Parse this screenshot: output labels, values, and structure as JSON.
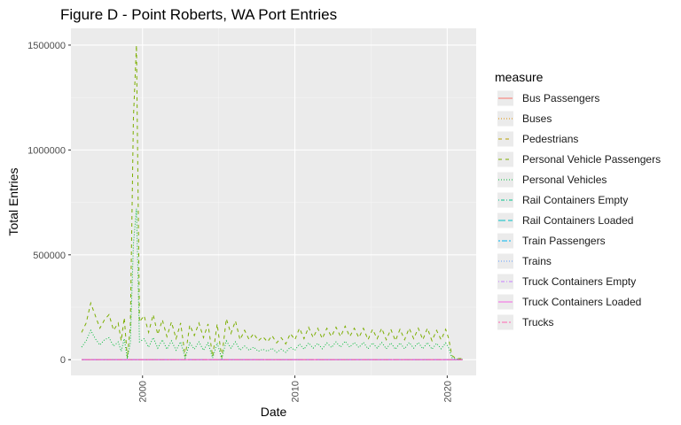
{
  "chart_data": {
    "type": "line",
    "title": "Figure D - Point Roberts, WA Port Entries",
    "xlabel": "Date",
    "ylabel": "Total Entries",
    "x_ticks": [
      2000,
      2010,
      2020
    ],
    "x_tick_labels": [
      "2000",
      "2010",
      "2020"
    ],
    "y_ticks": [
      0,
      500000,
      1000000,
      1500000
    ],
    "y_tick_labels": [
      "0",
      "500000",
      "1000000",
      "1500000"
    ],
    "xlim": [
      1995.3,
      2021.9
    ],
    "ylim": [
      -75000,
      1580000
    ],
    "grid": true,
    "legend": {
      "title": "measure",
      "position": "right"
    },
    "series": [
      {
        "name": "Bus Passengers",
        "color": "#F8766D",
        "dash": "solid",
        "x": [
          1996.0,
          2001.0,
          2006.0,
          2011.0,
          2016.0,
          2020.0,
          2021.0
        ],
        "y": [
          0,
          0,
          0,
          0,
          0,
          0,
          0
        ]
      },
      {
        "name": "Buses",
        "color": "#DE8C00",
        "dash": "dotted",
        "x": [
          1996.0,
          2001.0,
          2006.0,
          2011.0,
          2016.0,
          2020.0,
          2021.0
        ],
        "y": [
          0,
          0,
          0,
          0,
          0,
          0,
          0
        ]
      },
      {
        "name": "Pedestrians",
        "color": "#B79F00",
        "dash": "dashed",
        "x": [
          1996.0,
          2005.0,
          2015.0,
          2020.0,
          2021.0
        ],
        "y": [
          0,
          0,
          0,
          0,
          0
        ]
      },
      {
        "name": "Personal Vehicle Passengers",
        "color": "#7CAE00",
        "dash": "dashed",
        "x": [
          1996.0,
          1996.3,
          1996.6,
          1996.9,
          1997.2,
          1997.5,
          1997.8,
          1998.1,
          1998.4,
          1998.6,
          1998.8,
          1999.0,
          1999.2,
          1999.4,
          1999.6,
          1999.8,
          2000.1,
          2000.4,
          2000.7,
          2001.0,
          2001.3,
          2001.6,
          2001.9,
          2002.2,
          2002.5,
          2002.8,
          2003.1,
          2003.4,
          2003.7,
          2004.0,
          2004.3,
          2004.6,
          2004.9,
          2005.2,
          2005.5,
          2005.8,
          2006.1,
          2006.4,
          2006.7,
          2007.0,
          2007.3,
          2007.6,
          2007.9,
          2008.2,
          2008.5,
          2008.8,
          2009.1,
          2009.4,
          2009.7,
          2010.0,
          2010.3,
          2010.6,
          2010.9,
          2011.2,
          2011.5,
          2011.8,
          2012.1,
          2012.4,
          2012.7,
          2013.0,
          2013.3,
          2013.6,
          2013.9,
          2014.2,
          2014.5,
          2014.8,
          2015.1,
          2015.4,
          2015.7,
          2016.0,
          2016.3,
          2016.6,
          2016.9,
          2017.2,
          2017.5,
          2017.8,
          2018.1,
          2018.4,
          2018.7,
          2019.0,
          2019.3,
          2019.6,
          2019.9,
          2020.1,
          2020.3,
          2020.6,
          2021.0
        ],
        "y": [
          130000,
          175000,
          270000,
          210000,
          150000,
          190000,
          215000,
          140000,
          175000,
          90000,
          200000,
          10000,
          160000,
          1150000,
          1500000,
          180000,
          210000,
          130000,
          215000,
          120000,
          190000,
          110000,
          180000,
          100000,
          175000,
          15000,
          165000,
          115000,
          175000,
          105000,
          170000,
          15000,
          170000,
          10000,
          195000,
          125000,
          185000,
          95000,
          140000,
          95000,
          125000,
          90000,
          110000,
          85000,
          115000,
          80000,
          105000,
          75000,
          125000,
          95000,
          150000,
          100000,
          155000,
          105000,
          150000,
          100000,
          150000,
          110000,
          155000,
          110000,
          160000,
          110000,
          150000,
          105000,
          150000,
          95000,
          145000,
          100000,
          150000,
          95000,
          145000,
          90000,
          145000,
          95000,
          150000,
          100000,
          150000,
          95000,
          150000,
          90000,
          140000,
          95000,
          145000,
          100000,
          20000,
          5000,
          5000
        ]
      },
      {
        "name": "Personal Vehicles",
        "color": "#00BA38",
        "dash": "dotted",
        "x": [
          1996.0,
          1996.3,
          1996.6,
          1996.9,
          1997.2,
          1997.5,
          1997.8,
          1998.1,
          1998.4,
          1998.6,
          1998.8,
          1999.0,
          1999.2,
          1999.4,
          1999.6,
          1999.8,
          2000.1,
          2000.4,
          2000.7,
          2001.0,
          2001.3,
          2001.6,
          2001.9,
          2002.2,
          2002.5,
          2002.8,
          2003.1,
          2003.4,
          2003.7,
          2004.0,
          2004.3,
          2004.6,
          2004.9,
          2005.2,
          2005.5,
          2005.8,
          2006.1,
          2006.4,
          2006.7,
          2007.0,
          2007.3,
          2007.6,
          2007.9,
          2008.2,
          2008.5,
          2008.8,
          2009.1,
          2009.4,
          2009.7,
          2010.0,
          2010.3,
          2010.6,
          2010.9,
          2011.2,
          2011.5,
          2011.8,
          2012.1,
          2012.4,
          2012.7,
          2013.0,
          2013.3,
          2013.6,
          2013.9,
          2014.2,
          2014.5,
          2014.8,
          2015.1,
          2015.4,
          2015.7,
          2016.0,
          2016.3,
          2016.6,
          2016.9,
          2017.2,
          2017.5,
          2017.8,
          2018.1,
          2018.4,
          2018.7,
          2019.0,
          2019.3,
          2019.6,
          2019.9,
          2020.1,
          2020.3,
          2020.6,
          2021.0
        ],
        "y": [
          60000,
          90000,
          140000,
          100000,
          70000,
          95000,
          105000,
          65000,
          85000,
          40000,
          100000,
          5000,
          80000,
          550000,
          720000,
          85000,
          100000,
          60000,
          105000,
          55000,
          95000,
          50000,
          90000,
          45000,
          85000,
          8000,
          80000,
          50000,
          85000,
          45000,
          80000,
          8000,
          80000,
          5000,
          90000,
          55000,
          85000,
          45000,
          65000,
          45000,
          60000,
          40000,
          50000,
          40000,
          55000,
          35000,
          50000,
          35000,
          60000,
          45000,
          75000,
          50000,
          80000,
          55000,
          78000,
          52000,
          80000,
          58000,
          85000,
          60000,
          88000,
          60000,
          82000,
          58000,
          82000,
          52000,
          80000,
          55000,
          82000,
          52000,
          80000,
          50000,
          80000,
          52000,
          82000,
          55000,
          82000,
          52000,
          82000,
          50000,
          78000,
          52000,
          80000,
          55000,
          10000,
          3000,
          3000
        ]
      },
      {
        "name": "Rail Containers Empty",
        "color": "#00C08B",
        "dash": "dotdash",
        "x": [
          1996.0,
          2021.0
        ],
        "y": [
          0,
          0
        ]
      },
      {
        "name": "Rail Containers Loaded",
        "color": "#00BFC4",
        "dash": "longdash",
        "x": [
          1996.0,
          2021.0
        ],
        "y": [
          0,
          0
        ]
      },
      {
        "name": "Train Passengers",
        "color": "#00B4F0",
        "dash": "twodash",
        "x": [
          1996.0,
          2021.0
        ],
        "y": [
          0,
          0
        ]
      },
      {
        "name": "Trains",
        "color": "#619CFF",
        "dash": "dotted",
        "x": [
          1996.0,
          2021.0
        ],
        "y": [
          0,
          0
        ]
      },
      {
        "name": "Truck Containers Empty",
        "color": "#C77CFF",
        "dash": "dotdash",
        "x": [
          1996.0,
          2021.0
        ],
        "y": [
          0,
          0
        ]
      },
      {
        "name": "Truck Containers Loaded",
        "color": "#F564E3",
        "dash": "solid",
        "x": [
          1996.0,
          2021.0
        ],
        "y": [
          0,
          0
        ]
      },
      {
        "name": "Trucks",
        "color": "#FF64B0",
        "dash": "twodash",
        "x": [
          1996.0,
          2005.0,
          2010.0,
          2015.0,
          2020.0,
          2021.0
        ],
        "y": [
          500,
          600,
          500,
          600,
          400,
          200
        ]
      }
    ]
  }
}
